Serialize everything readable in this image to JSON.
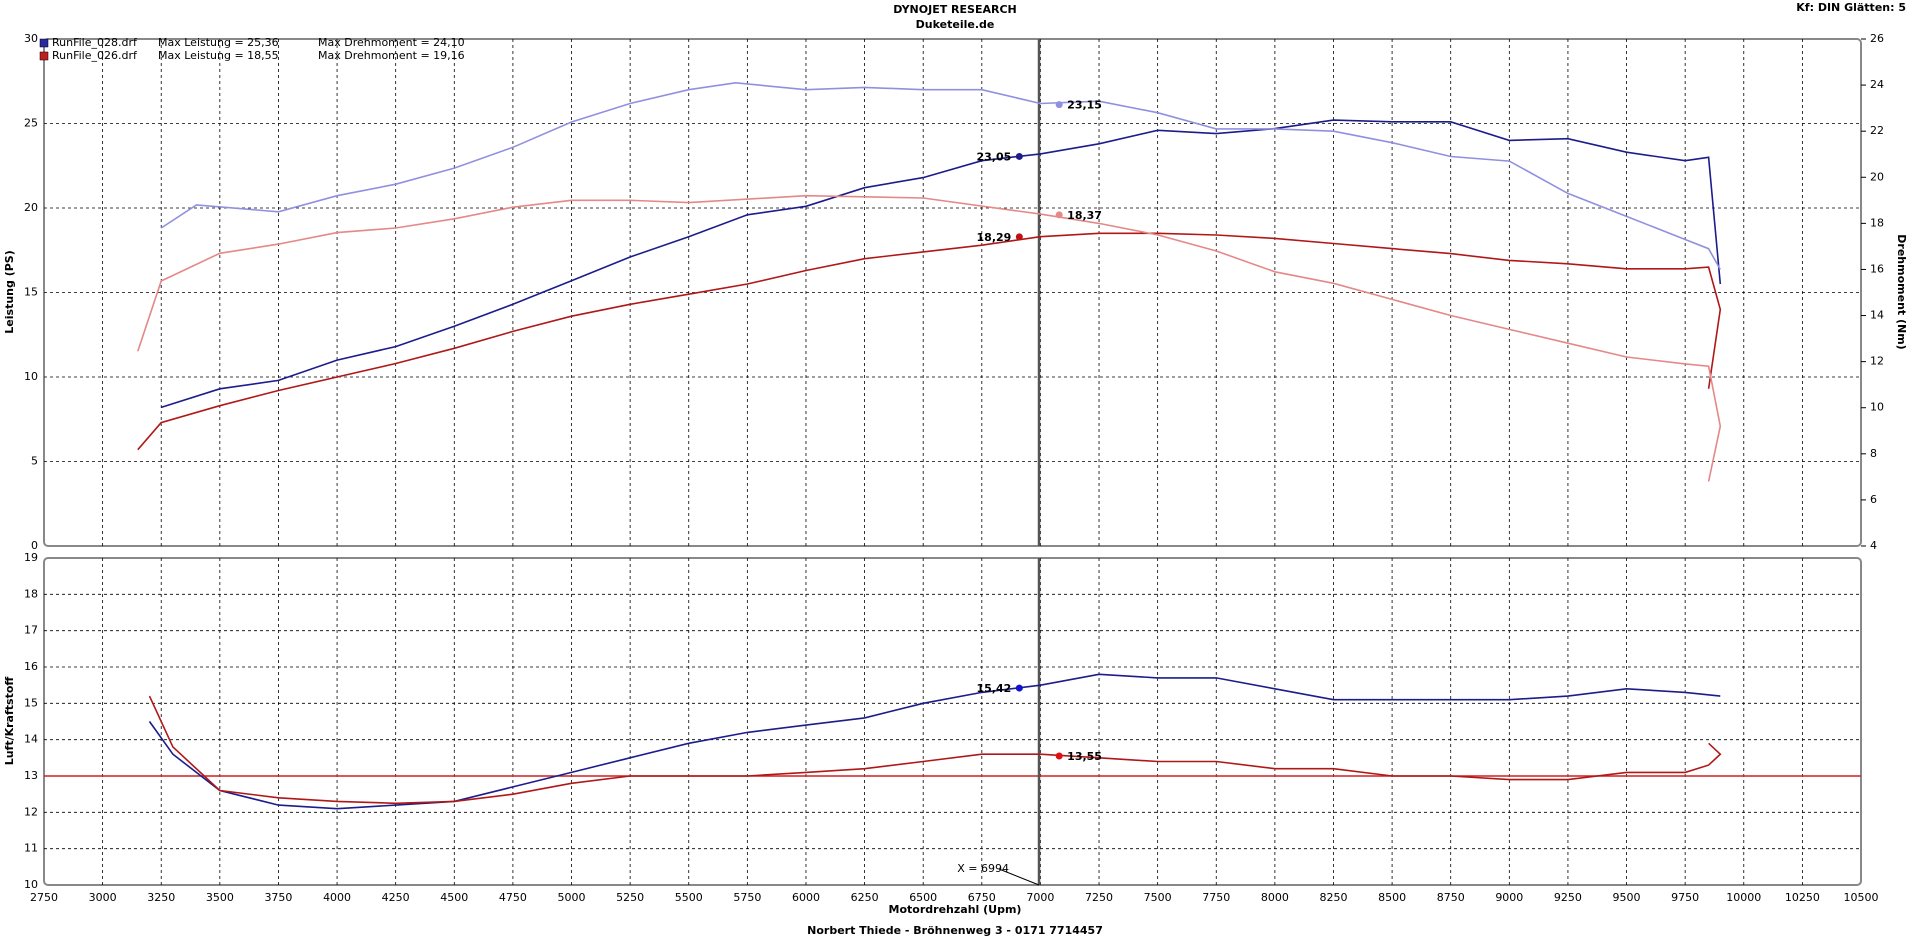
{
  "chart_data": [
    {
      "type": "line",
      "title": "DYNOJET RESEARCH",
      "subtitle": "Duketeile.de",
      "note": "Kf: DIN  Glätten: 5",
      "ylabel": "Leistung (PS)",
      "y2label": "Drehmoment (Nm)",
      "xlim": [
        2750,
        10500
      ],
      "xticks": [
        2750,
        3000,
        3250,
        3500,
        3750,
        4000,
        4250,
        4500,
        4750,
        5000,
        5250,
        5500,
        5750,
        6000,
        6250,
        6500,
        6750,
        7000,
        7250,
        7500,
        7750,
        8000,
        8250,
        8500,
        8750,
        9000,
        9250,
        9500,
        9750,
        10000,
        10250,
        10500
      ],
      "ylim": [
        0,
        30
      ],
      "yticks": [
        0,
        5,
        10,
        15,
        20,
        25,
        30
      ],
      "y2lim": [
        4,
        26
      ],
      "y2ticks": [
        4,
        6,
        8,
        10,
        12,
        14,
        16,
        18,
        20,
        22,
        24,
        26
      ],
      "grid": true,
      "legend": [
        {
          "name": "RunFile_028.drf",
          "power": "Max Leistung = 25,36",
          "torque": "Max Drehmoment = 24,10",
          "color": "#2a2aa0"
        },
        {
          "name": "RunFile_026.drf",
          "power": "Max Leistung = 18,55",
          "torque": "Max Drehmoment = 19,16",
          "color": "#c02020"
        }
      ],
      "series": [
        {
          "color": "#1c1c8c",
          "axis": "y",
          "x": [
            3250,
            3500,
            3750,
            4000,
            4250,
            4500,
            4750,
            5000,
            5250,
            5500,
            5750,
            6000,
            6250,
            6500,
            6750,
            7000,
            7250,
            7500,
            7750,
            8000,
            8250,
            8500,
            8750,
            9000,
            9250,
            9500,
            9750,
            9850,
            9900
          ],
          "values": [
            8.2,
            9.3,
            9.8,
            11,
            11.8,
            13,
            14.3,
            15.7,
            17.1,
            18.3,
            19.6,
            20.1,
            21.2,
            21.8,
            22.8,
            23.2,
            23.8,
            24.6,
            24.4,
            24.7,
            25.2,
            25.1,
            25.1,
            24,
            24.1,
            23.3,
            22.8,
            23,
            15.5
          ]
        },
        {
          "color": "#9090e0",
          "axis": "y2",
          "x": [
            3250,
            3400,
            3750,
            4000,
            4250,
            4500,
            4750,
            5000,
            5250,
            5500,
            5700,
            6000,
            6250,
            6500,
            6750,
            7000,
            7250,
            7500,
            7750,
            8000,
            8250,
            8500,
            8750,
            9000,
            9250,
            9500,
            9750,
            9850,
            9900
          ],
          "values": [
            17.8,
            18.8,
            18.5,
            19.2,
            19.7,
            20.4,
            21.3,
            22.4,
            23.2,
            23.8,
            24.1,
            23.8,
            23.9,
            23.8,
            23.8,
            23.2,
            23.3,
            22.8,
            22.1,
            22.1,
            22,
            21.5,
            20.9,
            20.7,
            19.3,
            18.3,
            17.3,
            16.9,
            16
          ]
        },
        {
          "color": "#b01818",
          "axis": "y",
          "x": [
            3150,
            3250,
            3500,
            3750,
            4000,
            4250,
            4500,
            4750,
            5000,
            5250,
            5500,
            5750,
            6000,
            6250,
            6500,
            6750,
            7000,
            7250,
            7500,
            7750,
            8000,
            8250,
            8500,
            8750,
            9000,
            9250,
            9500,
            9750,
            9850,
            9900,
            9850
          ],
          "values": [
            5.7,
            7.3,
            8.3,
            9.2,
            10,
            10.8,
            11.7,
            12.7,
            13.6,
            14.3,
            14.9,
            15.5,
            16.3,
            17,
            17.4,
            17.8,
            18.3,
            18.5,
            18.5,
            18.4,
            18.2,
            17.9,
            17.6,
            17.3,
            16.9,
            16.7,
            16.4,
            16.4,
            16.5,
            14,
            9.3
          ]
        },
        {
          "color": "#e48888",
          "axis": "y2",
          "x": [
            3150,
            3250,
            3500,
            3750,
            4000,
            4250,
            4500,
            4750,
            5000,
            5250,
            5500,
            6000,
            6500,
            7000,
            7250,
            7500,
            7750,
            8000,
            8250,
            8500,
            8750,
            9000,
            9250,
            9500,
            9750,
            9850,
            9900,
            9850
          ],
          "values": [
            12.45,
            15.5,
            16.7,
            17.1,
            17.6,
            17.8,
            18.2,
            18.7,
            19,
            19,
            18.9,
            19.2,
            19.1,
            18.4,
            18,
            17.5,
            16.8,
            15.9,
            15.4,
            14.7,
            14,
            13.4,
            12.8,
            12.2,
            11.9,
            11.8,
            9.2,
            6.8
          ]
        }
      ],
      "annotations": [
        {
          "x": 6910,
          "value": 23.05,
          "label": "23,05",
          "axis": "y",
          "color": "#1c1c8c"
        },
        {
          "x": 7080,
          "value": 23.15,
          "label": "23,15",
          "axis": "y2",
          "color": "#9090e0"
        },
        {
          "x": 6910,
          "value": 18.29,
          "label": "18,29",
          "axis": "y",
          "color": "#c01010"
        },
        {
          "x": 7080,
          "value": 18.37,
          "label": "18,37",
          "axis": "y2",
          "color": "#e48888"
        }
      ]
    },
    {
      "type": "line",
      "xlabel": "Motordrehzahl (Upm)",
      "ylabel": "Luft/Kraftstoff",
      "footer": "Norbert Thiede - Bröhnenweg 3 - 0171 7714457",
      "xlim": [
        2750,
        10500
      ],
      "xticks": [
        2750,
        3000,
        3250,
        3500,
        3750,
        4000,
        4250,
        4500,
        4750,
        5000,
        5250,
        5500,
        5750,
        6000,
        6250,
        6500,
        6750,
        7000,
        7250,
        7500,
        7750,
        8000,
        8250,
        8500,
        8750,
        9000,
        9250,
        9500,
        9750,
        10000,
        10250,
        10500
      ],
      "ylim": [
        10,
        19
      ],
      "yticks": [
        10,
        11,
        12,
        13,
        14,
        15,
        16,
        17,
        18,
        19
      ],
      "grid": true,
      "reference_line": {
        "value": 13,
        "color": "#d02020"
      },
      "cursor": {
        "value": 6994,
        "label": "X = 6994"
      },
      "series": [
        {
          "color": "#1c1c8c",
          "x": [
            3200,
            3300,
            3500,
            3750,
            4000,
            4250,
            4500,
            4750,
            5000,
            5250,
            5500,
            5750,
            6000,
            6250,
            6500,
            6750,
            7000,
            7250,
            7500,
            7750,
            8000,
            8250,
            8500,
            8750,
            9000,
            9250,
            9500,
            9750,
            9900
          ],
          "values": [
            14.5,
            13.6,
            12.6,
            12.2,
            12.1,
            12.2,
            12.3,
            12.7,
            13.1,
            13.5,
            13.9,
            14.2,
            14.4,
            14.6,
            15,
            15.3,
            15.5,
            15.8,
            15.7,
            15.7,
            15.4,
            15.1,
            15.1,
            15.1,
            15.1,
            15.2,
            15.4,
            15.3,
            15.2
          ]
        },
        {
          "color": "#b01818",
          "x": [
            3200,
            3300,
            3500,
            3750,
            4000,
            4250,
            4500,
            4750,
            5000,
            5250,
            5500,
            5750,
            6000,
            6250,
            6500,
            6750,
            7000,
            7250,
            7500,
            7750,
            8000,
            8250,
            8500,
            8750,
            9000,
            9250,
            9500,
            9750,
            9850,
            9900,
            9850
          ],
          "values": [
            15.2,
            13.8,
            12.6,
            12.4,
            12.3,
            12.25,
            12.3,
            12.5,
            12.8,
            13,
            13,
            13,
            13.1,
            13.2,
            13.4,
            13.6,
            13.6,
            13.5,
            13.4,
            13.4,
            13.2,
            13.2,
            13,
            13,
            12.9,
            12.9,
            13.1,
            13.1,
            13.3,
            13.6,
            13.9
          ]
        }
      ],
      "annotations": [
        {
          "x": 6910,
          "value": 15.42,
          "label": "15,42",
          "color": "#1010d0"
        },
        {
          "x": 7080,
          "value": 13.55,
          "label": "13,55",
          "color": "#e01010"
        }
      ]
    }
  ]
}
